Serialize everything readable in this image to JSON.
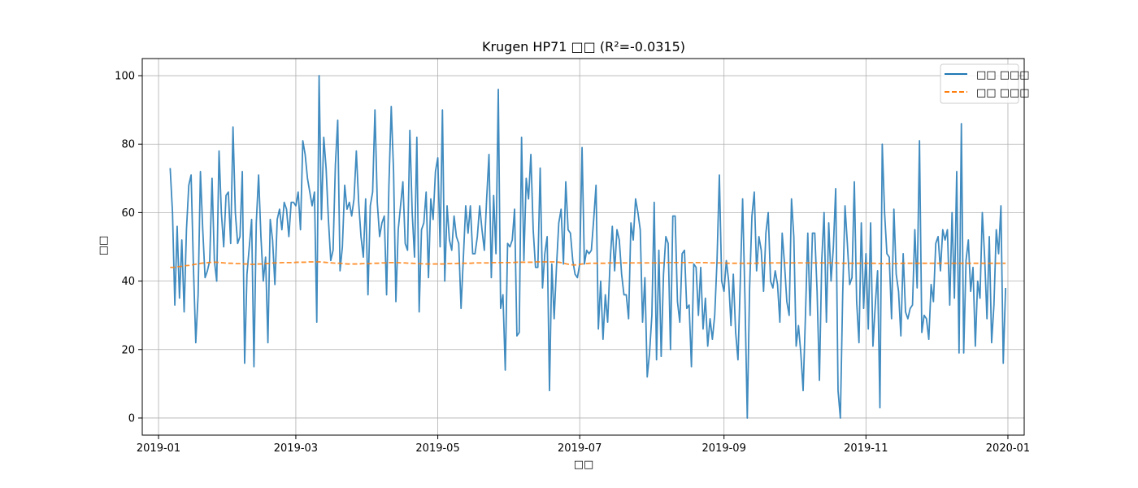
{
  "chart_data": {
    "type": "line",
    "title": "Krugen HP71 □□ (R²=-0.0315)",
    "xlabel": "□□",
    "ylabel": "□□",
    "xlim": [
      "2018-12-25",
      "2020-01-08"
    ],
    "ylim": [
      -5,
      105
    ],
    "x_ticks": [
      "2019-01",
      "2019-03",
      "2019-05",
      "2019-07",
      "2019-09",
      "2019-11",
      "2020-01"
    ],
    "y_ticks": [
      0,
      20,
      40,
      60,
      80,
      100
    ],
    "grid": true,
    "legend_position": "upper right",
    "series": [
      {
        "name": "□□ □□□",
        "color": "#1f77b4",
        "style": "solid",
        "x_start": "2019-01-06",
        "x_end": "2019-12-31",
        "values": [
          73,
          60,
          33,
          56,
          35,
          52,
          31,
          55,
          68,
          71,
          44,
          22,
          36,
          72,
          55,
          41,
          43,
          46,
          70,
          46,
          40,
          78,
          60,
          50,
          65,
          66,
          51,
          85,
          60,
          51,
          53,
          72,
          16,
          42,
          50,
          58,
          15,
          57,
          71,
          53,
          40,
          47,
          22,
          58,
          52,
          39,
          58,
          61,
          55,
          63,
          61,
          53,
          63,
          63,
          62,
          66,
          55,
          81,
          77,
          70,
          66,
          62,
          66,
          28,
          100,
          58,
          82,
          73,
          58,
          46,
          49,
          74,
          87,
          43,
          50,
          68,
          61,
          63,
          59,
          64,
          78,
          63,
          53,
          47,
          64,
          36,
          62,
          66,
          90,
          63,
          53,
          57,
          59,
          36,
          68,
          91,
          72,
          34,
          55,
          62,
          69,
          51,
          49,
          84,
          60,
          47,
          82,
          31,
          55,
          57,
          66,
          41,
          64,
          58,
          72,
          76,
          50,
          90,
          40,
          62,
          52,
          49,
          59,
          53,
          51,
          32,
          47,
          62,
          54,
          62,
          48,
          48,
          53,
          62,
          55,
          49,
          64,
          77,
          41,
          65,
          48,
          96,
          32,
          36,
          14,
          51,
          50,
          52,
          61,
          24,
          25,
          82,
          46,
          70,
          64,
          77,
          55,
          44,
          44,
          73,
          38,
          48,
          53,
          8,
          45,
          29,
          44,
          57,
          61,
          45,
          69,
          55,
          54,
          46,
          42,
          41,
          45,
          79,
          45,
          49,
          48,
          49,
          58,
          68,
          26,
          40,
          23,
          36,
          28,
          45,
          56,
          43,
          55,
          52,
          42,
          36,
          36,
          29,
          57,
          52,
          64,
          60,
          55,
          28,
          41,
          12,
          19,
          30,
          63,
          17,
          49,
          18,
          42,
          53,
          51,
          20,
          59,
          59,
          34,
          28,
          48,
          49,
          32,
          33,
          15,
          45,
          44,
          30,
          44,
          26,
          35,
          21,
          29,
          23,
          30,
          46,
          71,
          40,
          37,
          46,
          40,
          27,
          42,
          25,
          17,
          40,
          64,
          35,
          0,
          38,
          59,
          66,
          43,
          53,
          49,
          37,
          54,
          60,
          40,
          38,
          43,
          39,
          28,
          54,
          45,
          34,
          30,
          64,
          53,
          21,
          27,
          19,
          8,
          30,
          54,
          30,
          54,
          54,
          37,
          11,
          46,
          60,
          28,
          57,
          40,
          50,
          67,
          8,
          0,
          36,
          62,
          51,
          39,
          41,
          69,
          34,
          22,
          57,
          32,
          48,
          26,
          57,
          21,
          33,
          43,
          3,
          80,
          60,
          48,
          47,
          29,
          61,
          42,
          37,
          24,
          48,
          31,
          29,
          32,
          33,
          55,
          38,
          81,
          25,
          30,
          29,
          23,
          39,
          34,
          51,
          53,
          43,
          55,
          52,
          55,
          33,
          60,
          35,
          72,
          19,
          86,
          19,
          46,
          52,
          37,
          44,
          21,
          40,
          35,
          60,
          47,
          29,
          53,
          22,
          33,
          55,
          48,
          62,
          16,
          38
        ]
      },
      {
        "name": "□□ □□□",
        "color": "#ff7f0e",
        "style": "dashed",
        "x_start": "2019-01-06",
        "x_end": "2019-12-31",
        "values": [
          44.0,
          44.0,
          44.2,
          44.3,
          44.5,
          44.6,
          44.8,
          45.0,
          45.2,
          45.3,
          45.4,
          45.5,
          45.5,
          45.4,
          45.3,
          45.2,
          45.2,
          45.1,
          45.1,
          45.0,
          45.0,
          44.9,
          44.9,
          45.0,
          45.0,
          45.1,
          45.2,
          45.3,
          45.3,
          45.4,
          45.4,
          45.4,
          45.4,
          45.5,
          45.5,
          45.5,
          45.6,
          45.6,
          45.6,
          45.6,
          45.5,
          45.4,
          45.3,
          45.2,
          45.2,
          45.1,
          45.0,
          45.0,
          45.0,
          45.0,
          45.1,
          45.1,
          45.1,
          45.2,
          45.2,
          45.3,
          45.3,
          45.4,
          45.4,
          45.4,
          45.3,
          45.3,
          45.2,
          45.2,
          45.1,
          45.1,
          45.0,
          45.0,
          45.0,
          45.0,
          45.0,
          45.0,
          45.1,
          45.1,
          45.1,
          45.2,
          45.2,
          45.2,
          45.2,
          45.3,
          45.3,
          45.3,
          45.3,
          45.3,
          45.4,
          45.4,
          45.4,
          45.4,
          45.4,
          45.4,
          45.5,
          45.5,
          45.5,
          45.5,
          45.5,
          45.6,
          45.6,
          45.6,
          45.6,
          45.6,
          45.6,
          45.5,
          45.3,
          45.0,
          44.8,
          44.7,
          44.8,
          45.0,
          45.1,
          45.2,
          45.2,
          45.2,
          45.2,
          45.2,
          45.3,
          45.3,
          45.3,
          45.3,
          45.3,
          45.3,
          45.3,
          45.3,
          45.3,
          45.3,
          45.3,
          45.3,
          45.3,
          45.3,
          45.3,
          45.4,
          45.4,
          45.4,
          45.4,
          45.4,
          45.4,
          45.4,
          45.4,
          45.4,
          45.4,
          45.4,
          45.3,
          45.3,
          45.3,
          45.3,
          45.3,
          45.2,
          45.2,
          45.2,
          45.2,
          45.2,
          45.2,
          45.2,
          45.2,
          45.3,
          45.3,
          45.3,
          45.3,
          45.3,
          45.3,
          45.3,
          45.3,
          45.3,
          45.3,
          45.3,
          45.3,
          45.3,
          45.3,
          45.3,
          45.3,
          45.3,
          45.3,
          45.3,
          45.3,
          45.3,
          45.2,
          45.2,
          45.2,
          45.2,
          45.2,
          45.2,
          45.2,
          45.2,
          45.2,
          45.2,
          45.1,
          45.1,
          45.1,
          45.1,
          45.1,
          45.1,
          45.2,
          45.2,
          45.2,
          45.2,
          45.2,
          45.2,
          45.2,
          45.2,
          45.2,
          45.2,
          45.2,
          45.2,
          45.2,
          45.2,
          45.2,
          45.2,
          45.2,
          45.2,
          45.2,
          45.2,
          45.2,
          45.2,
          45.2,
          45.2,
          45.2,
          45.2,
          45.2,
          45.2
        ]
      }
    ]
  }
}
